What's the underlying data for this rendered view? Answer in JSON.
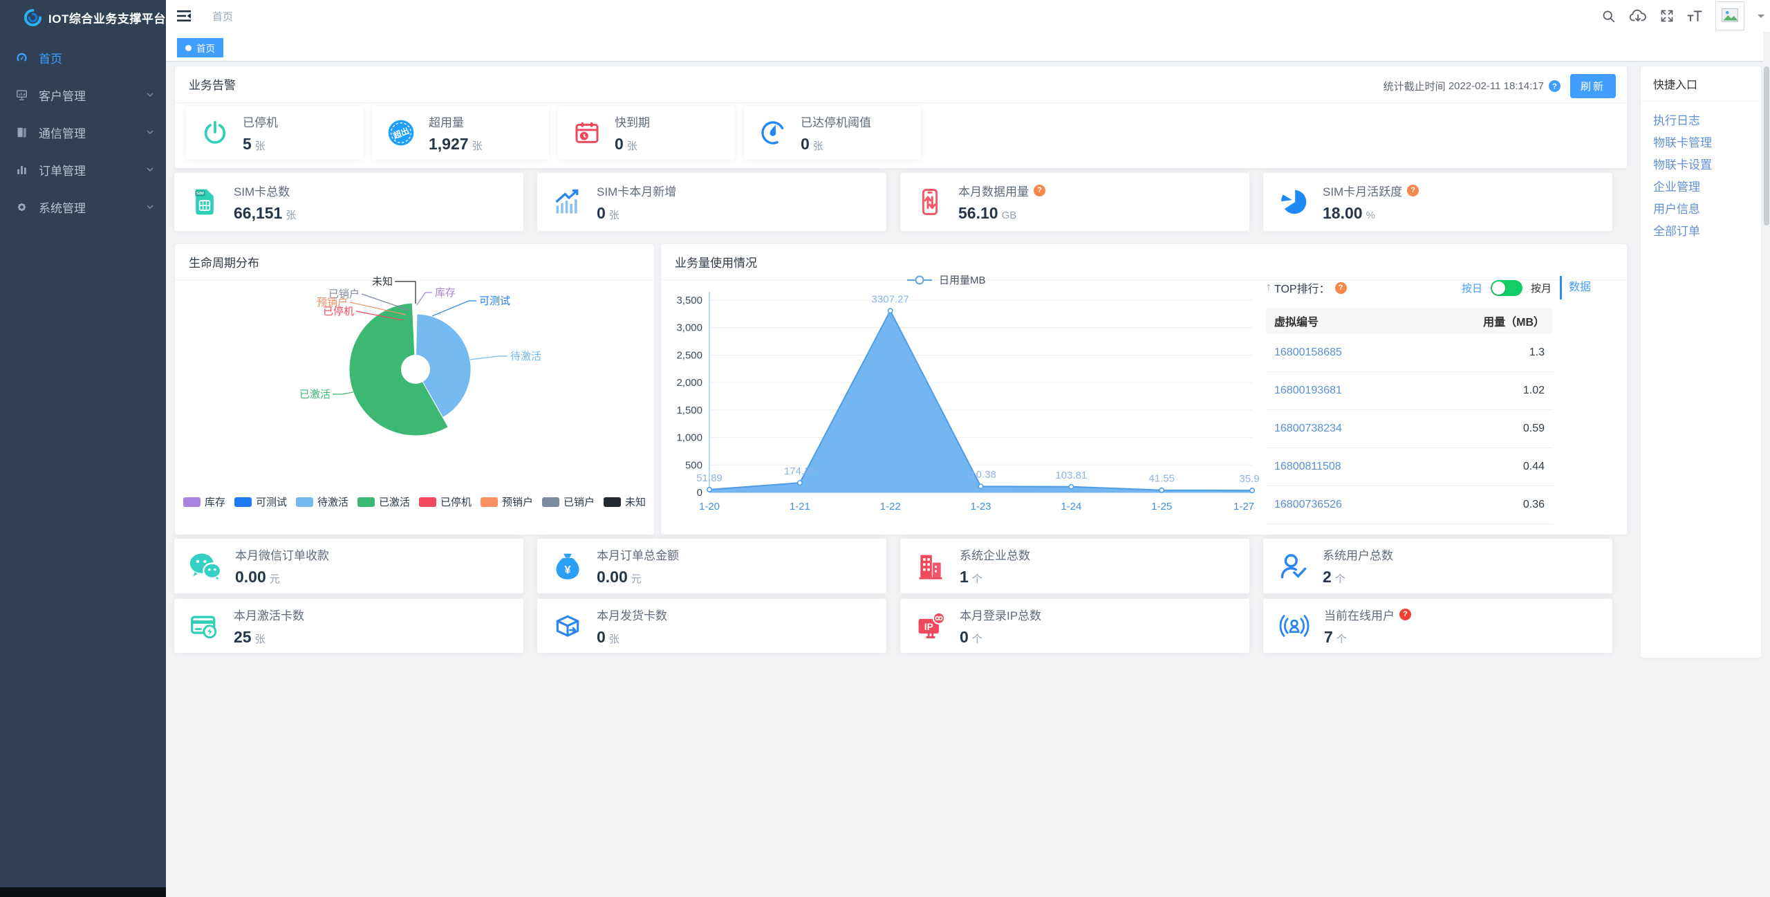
{
  "app": {
    "logo_title": "IOT综合业务支撑平台"
  },
  "colors": {
    "accent": "#409EFF",
    "toggle_on": "#13ce66",
    "sidebar_bg": "#304156"
  },
  "glyphs": {
    "overuse": "超出",
    "yuan": "¥",
    "ip": "IP",
    "sim": "SIM",
    "sort_arrow": "↑"
  },
  "sidebar": {
    "items": [
      {
        "label": "首页",
        "icon": "dashboard-icon",
        "active": true
      },
      {
        "label": "客户管理",
        "icon": "monitor-icon",
        "active": false
      },
      {
        "label": "通信管理",
        "icon": "book-icon",
        "active": false
      },
      {
        "label": "订单管理",
        "icon": "chart-bar-icon",
        "active": false
      },
      {
        "label": "系统管理",
        "icon": "gear-icon",
        "active": false
      }
    ]
  },
  "topbar": {
    "breadcrumb": "首页"
  },
  "tabbar": {
    "tabs": [
      {
        "label": "首页",
        "active": true
      }
    ]
  },
  "alert": {
    "title": "业务告警",
    "stat_time_label": "统计截止时间",
    "stat_time": "2022-02-11 18:14:17",
    "refresh": "刷新",
    "stats": [
      {
        "label": "已停机",
        "value": "5",
        "unit": "张",
        "icon": "power-icon"
      },
      {
        "label": "超用量",
        "value": "1,927",
        "unit": "张",
        "icon": "overuse-stamp-icon"
      },
      {
        "label": "快到期",
        "value": "0",
        "unit": "张",
        "icon": "calendar-clock-icon"
      },
      {
        "label": "已达停机阈值",
        "value": "0",
        "unit": "张",
        "icon": "gauge-icon"
      }
    ]
  },
  "kpis": [
    {
      "label": "SIM卡总数",
      "value": "66,151",
      "unit": "张",
      "icon": "sim-card-icon",
      "help": false
    },
    {
      "label": "SIM卡本月新增",
      "value": "0",
      "unit": "张",
      "icon": "growth-chart-icon",
      "help": false
    },
    {
      "label": "本月数据用量",
      "value": "56.10",
      "unit": "GB",
      "icon": "phone-data-icon",
      "help": true
    },
    {
      "label": "SIM卡月活跃度",
      "value": "18.00",
      "unit": "%",
      "icon": "pie-activity-icon",
      "help": true
    }
  ],
  "lifecycle": {
    "title": "生命周期分布",
    "legend": [
      {
        "label": "库存",
        "color": "#a883e0"
      },
      {
        "label": "可测试",
        "color": "#1f7bf4"
      },
      {
        "label": "待激活",
        "color": "#74b9f0"
      },
      {
        "label": "已激活",
        "color": "#3db873"
      },
      {
        "label": "已停机",
        "color": "#f0485c"
      },
      {
        "label": "预销户",
        "color": "#fa8f61"
      },
      {
        "label": "已销户",
        "color": "#7d8ba1"
      },
      {
        "label": "未知",
        "color": "#24282f"
      }
    ]
  },
  "usage": {
    "title": "业务量使用情况",
    "top": {
      "heading": "TOP排行：",
      "switch_left": "按日",
      "switch_right": "按月",
      "data_link": "数据",
      "columns": [
        "虚拟编号",
        "用量（MB）"
      ],
      "rows": [
        {
          "id": "16800158685",
          "usage": "1.3"
        },
        {
          "id": "16800193681",
          "usage": "1.02"
        },
        {
          "id": "16800738234",
          "usage": "0.59"
        },
        {
          "id": "16800811508",
          "usage": "0.44"
        },
        {
          "id": "16800736526",
          "usage": "0.36"
        }
      ]
    }
  },
  "chart_data": [
    {
      "type": "pie",
      "title": "生命周期分布",
      "rose": true,
      "legend_position": "bottom",
      "slices": [
        {
          "label": "库存",
          "percent": 0.2,
          "color": "#a883e0",
          "radius": 48
        },
        {
          "label": "可测试",
          "percent": 0.2,
          "color": "#1f7bf4",
          "radius": 52
        },
        {
          "label": "待激活",
          "percent": 41.4,
          "color": "#74b9f0",
          "radius": 80
        },
        {
          "label": "已激活",
          "percent": 57.4,
          "color": "#3db873",
          "radius": 96
        },
        {
          "label": "已停机",
          "percent": 0.2,
          "color": "#f0485c",
          "radius": 44
        },
        {
          "label": "预销户",
          "percent": 0.2,
          "color": "#fa8f61",
          "radius": 40
        },
        {
          "label": "已销户",
          "percent": 0.2,
          "color": "#7d8ba1",
          "radius": 38
        },
        {
          "label": "未知",
          "percent": 0.2,
          "color": "#24282f",
          "radius": 56
        }
      ]
    },
    {
      "type": "area",
      "title": "业务量使用情况",
      "series": "日用量MB",
      "x": [
        "1-20",
        "1-21",
        "1-22",
        "1-23",
        "1-24",
        "1-25",
        "1-27"
      ],
      "values": [
        51.89,
        174.36,
        3307.27,
        110.38,
        103.81,
        41.55,
        35.9
      ],
      "labels": [
        "51.89",
        "174.36",
        "3307.27",
        "110.38",
        "103.81",
        "41.55",
        "35.9"
      ],
      "ylim": [
        0,
        3500
      ],
      "ytick_step": 500,
      "grid": true,
      "legend_position": "top"
    }
  ],
  "bottom": [
    [
      {
        "label": "本月微信订单收款",
        "value": "0.00",
        "unit": "元",
        "icon": "wechat-icon",
        "help": ""
      },
      {
        "label": "本月订单总金额",
        "value": "0.00",
        "unit": "元",
        "icon": "money-bag-icon",
        "help": ""
      },
      {
        "label": "系统企业总数",
        "value": "1",
        "unit": "个",
        "icon": "building-icon",
        "help": ""
      },
      {
        "label": "系统用户总数",
        "value": "2",
        "unit": "个",
        "icon": "user-check-icon",
        "help": ""
      }
    ],
    [
      {
        "label": "本月激活卡数",
        "value": "25",
        "unit": "张",
        "icon": "card-activate-icon",
        "help": ""
      },
      {
        "label": "本月发货卡数",
        "value": "0",
        "unit": "张",
        "icon": "shipping-box-icon",
        "help": ""
      },
      {
        "label": "本月登录IP总数",
        "value": "0",
        "unit": "个",
        "icon": "ip-monitor-icon",
        "help": ""
      },
      {
        "label": "当前在线用户",
        "value": "7",
        "unit": "个",
        "icon": "online-user-icon",
        "help": "red"
      }
    ]
  ],
  "quick": {
    "title": "快捷入口",
    "links": [
      "执行日志",
      "物联卡管理",
      "物联卡设置",
      "企业管理",
      "用户信息",
      "全部订单"
    ]
  }
}
